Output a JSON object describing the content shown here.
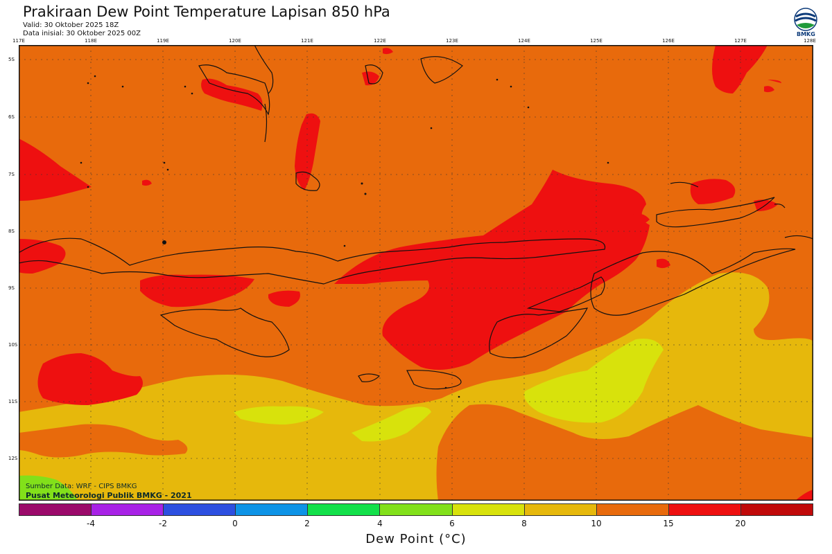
{
  "header": {
    "title": "Prakiraan Dew Point Temperature Lapisan 850 hPa",
    "valid": "Valid: 30 Oktober 2025 18Z",
    "initial": "Data inisial: 30 Oktober 2025 00Z",
    "logo_text": "BMKG"
  },
  "axes": {
    "lon_labels": [
      "117E",
      "118E",
      "119E",
      "120E",
      "121E",
      "122E",
      "123E",
      "124E",
      "125E",
      "126E",
      "127E",
      "128E"
    ],
    "lat_labels": [
      "5S",
      "6S",
      "7S",
      "8S",
      "9S",
      "10S",
      "11S",
      "12S"
    ]
  },
  "footer": {
    "source": "Sumber Data: WRF - CIPS BMKG",
    "org": "Pusat Meteorologi Publik BMKG - 2021"
  },
  "colorbar": {
    "title": "Dew Point (°C)",
    "colors": [
      "#9b0a6a",
      "#a822e6",
      "#2d4fe0",
      "#0e93e6",
      "#12e04a",
      "#82e01a",
      "#d8e20c",
      "#e6b80c",
      "#e86a0c",
      "#ee1010",
      "#c00a0a"
    ],
    "tick_labels": [
      "-4",
      "-2",
      "0",
      "2",
      "4",
      "6",
      "8",
      "10",
      "15",
      "20"
    ]
  },
  "map_colors": {
    "c10_15": "#e86a0c",
    "c15_20": "#ee1010",
    "c8_10": "#e6b80c",
    "c6_8": "#d8e20c",
    "c4_6": "#82e01a",
    "c20_plus": "#c00a0a"
  }
}
